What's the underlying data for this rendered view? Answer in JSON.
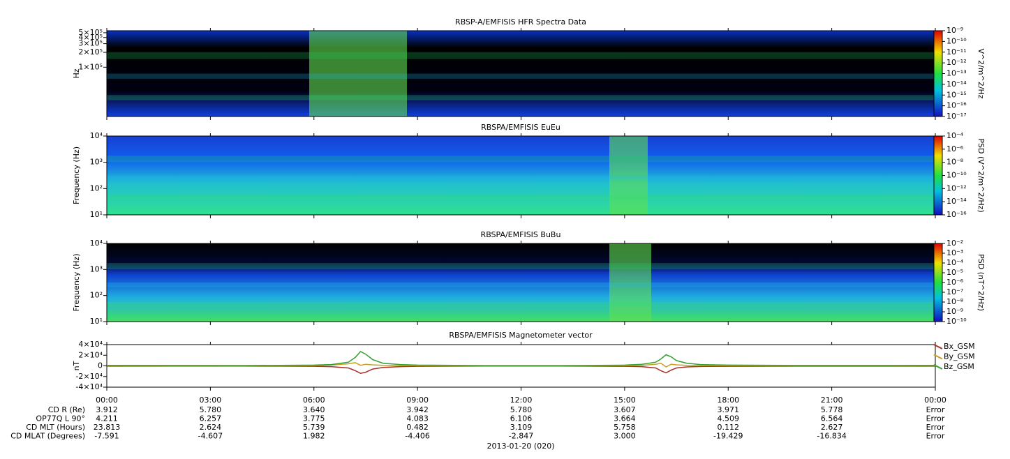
{
  "chart_data": [
    {
      "type": "spectrogram",
      "title": "RBSP-A/EMFISIS  HFR Spectra Data",
      "ylabel": "Hz",
      "yscale": "log",
      "ylim": [
        10000,
        550000
      ],
      "yticks": [
        {
          "value": 100000,
          "label": "1×10⁵"
        },
        {
          "value": 200000,
          "label": "2×10⁵"
        },
        {
          "value": 300000,
          "label": "3×10⁵"
        },
        {
          "value": 400000,
          "label": "4×10⁵"
        },
        {
          "value": 500000,
          "label": "5×10⁵"
        }
      ],
      "clabel": "V^2/m^2/Hz",
      "clim": [
        1e-17,
        1e-09
      ],
      "cticks": [
        {
          "value": 1e-09,
          "label": "10⁻⁹"
        },
        {
          "value": 1e-10,
          "label": "10⁻¹⁰"
        },
        {
          "value": 1e-11,
          "label": "10⁻¹¹"
        },
        {
          "value": 1e-12,
          "label": "10⁻¹²"
        },
        {
          "value": 1e-13,
          "label": "10⁻¹³"
        },
        {
          "value": 1e-14,
          "label": "10⁻¹⁴"
        },
        {
          "value": 1e-15,
          "label": "10⁻¹⁵"
        },
        {
          "value": 1e-16,
          "label": "10⁻¹⁶"
        },
        {
          "value": 1e-17,
          "label": "10⁻¹⁷"
        }
      ]
    },
    {
      "type": "spectrogram",
      "title": "RBSPA/EMFISIS  EuEu",
      "ylabel": "Frequency (Hz)",
      "yscale": "log",
      "ylim": [
        10,
        10000
      ],
      "yticks": [
        {
          "value": 10,
          "label": "10¹"
        },
        {
          "value": 100,
          "label": "10²"
        },
        {
          "value": 1000,
          "label": "10³"
        },
        {
          "value": 10000,
          "label": "10⁴"
        }
      ],
      "clabel": "PSD (V^2/m^2/Hz)",
      "clim": [
        1e-16,
        0.0001
      ],
      "cticks": [
        {
          "value": 0.0001,
          "label": "10⁻⁴"
        },
        {
          "value": 1e-06,
          "label": "10⁻⁶"
        },
        {
          "value": 1e-08,
          "label": "10⁻⁸"
        },
        {
          "value": 1e-10,
          "label": "10⁻¹⁰"
        },
        {
          "value": 1e-12,
          "label": "10⁻¹²"
        },
        {
          "value": 1e-14,
          "label": "10⁻¹⁴"
        },
        {
          "value": 1e-16,
          "label": "10⁻¹⁶"
        }
      ]
    },
    {
      "type": "spectrogram",
      "title": "RBSPA/EMFISIS  BuBu",
      "ylabel": "Frequency (Hz)",
      "yscale": "log",
      "ylim": [
        10,
        10000
      ],
      "yticks": [
        {
          "value": 10,
          "label": "10¹"
        },
        {
          "value": 100,
          "label": "10²"
        },
        {
          "value": 1000,
          "label": "10³"
        },
        {
          "value": 10000,
          "label": "10⁴"
        }
      ],
      "clabel": "PSD (nT^2/Hz)",
      "clim": [
        1e-10,
        0.01
      ],
      "cticks": [
        {
          "value": 0.01,
          "label": "10⁻²"
        },
        {
          "value": 0.001,
          "label": "10⁻³"
        },
        {
          "value": 0.0001,
          "label": "10⁻⁴"
        },
        {
          "value": 1e-05,
          "label": "10⁻⁵"
        },
        {
          "value": 1e-06,
          "label": "10⁻⁶"
        },
        {
          "value": 1e-07,
          "label": "10⁻⁷"
        },
        {
          "value": 1e-08,
          "label": "10⁻⁸"
        },
        {
          "value": 1e-09,
          "label": "10⁻⁹"
        },
        {
          "value": 1e-10,
          "label": "10⁻¹⁰"
        }
      ]
    },
    {
      "type": "line",
      "title": "RBSPA/EMFISIS  Magnetometer vector",
      "ylabel": "nT",
      "xlabel": "2013-01-20 (020)",
      "ylim": [
        -40000,
        40000
      ],
      "yticks": [
        {
          "value": -40000,
          "label": "-4×10⁴"
        },
        {
          "value": -20000,
          "label": "-2×10⁴"
        },
        0,
        {
          "value": 20000,
          "label": "2×10⁴"
        },
        {
          "value": 40000,
          "label": "4×10⁴"
        }
      ],
      "xlim": [
        0,
        24
      ],
      "xticks": [
        {
          "value": 0,
          "label": "00:00"
        },
        {
          "value": 3,
          "label": "03:00"
        },
        {
          "value": 6,
          "label": "06:00"
        },
        {
          "value": 9,
          "label": "09:00"
        },
        {
          "value": 12,
          "label": "12:00"
        },
        {
          "value": 15,
          "label": "15:00"
        },
        {
          "value": 18,
          "label": "18:00"
        },
        {
          "value": 21,
          "label": "21:00"
        },
        {
          "value": 24,
          "label": "00:00"
        }
      ],
      "x": [
        0,
        2,
        4,
        5,
        6,
        6.5,
        7,
        7.2,
        7.35,
        7.5,
        7.7,
        8,
        8.5,
        9,
        11,
        13,
        14,
        15,
        15.5,
        15.9,
        16.05,
        16.2,
        16.35,
        16.5,
        16.8,
        17.2,
        18,
        20,
        22,
        24
      ],
      "series": [
        {
          "name": "Bx_GSM",
          "color": "#a8302a",
          "values": [
            -500,
            -300,
            -300,
            -500,
            -800,
            -1500,
            -4000,
            -9000,
            -14000,
            -12000,
            -6000,
            -3000,
            -1500,
            -800,
            -300,
            -300,
            -500,
            -800,
            -1500,
            -4000,
            -9000,
            -13000,
            -8000,
            -4000,
            -2000,
            -1200,
            -800,
            -500,
            -500,
            -500
          ]
        },
        {
          "name": "By_GSM",
          "color": "#c8a020",
          "values": [
            300,
            200,
            200,
            300,
            500,
            1500,
            4000,
            6000,
            1000,
            3000,
            2000,
            1000,
            500,
            300,
            100,
            100,
            200,
            400,
            1000,
            3000,
            5000,
            -2000,
            3000,
            2000,
            1000,
            500,
            300,
            200,
            200,
            300
          ]
        },
        {
          "name": "Bz_GSM",
          "color": "#30a030",
          "values": [
            1000,
            800,
            700,
            1000,
            1500,
            2500,
            7000,
            16000,
            27000,
            22000,
            12000,
            5000,
            2500,
            1500,
            500,
            500,
            800,
            1500,
            3000,
            7000,
            13000,
            21000,
            17000,
            10000,
            5000,
            2500,
            1500,
            800,
            800,
            1000
          ]
        }
      ]
    }
  ],
  "ephemeris": {
    "rows": [
      {
        "label": "CD R (Re)",
        "values": [
          "3.912",
          "5.780",
          "3.640",
          "3.942",
          "5.780",
          "3.607",
          "3.971",
          "5.778",
          "Error"
        ]
      },
      {
        "label": "OP77Q L 90°",
        "values": [
          "4.211",
          "6.257",
          "3.775",
          "4.083",
          "6.106",
          "3.664",
          "4.509",
          "6.564",
          "Error"
        ]
      },
      {
        "label": "CD MLT (Hours)",
        "values": [
          "23.813",
          "2.624",
          "5.739",
          "0.482",
          "3.109",
          "5.758",
          "0.112",
          "2.627",
          "Error"
        ]
      },
      {
        "label": "CD MLAT (Degrees)",
        "values": [
          "-7.591",
          "-4.607",
          "1.982",
          "-4.406",
          "-2.847",
          "3.000",
          "-19.429",
          "-16.834",
          "Error"
        ]
      }
    ]
  }
}
